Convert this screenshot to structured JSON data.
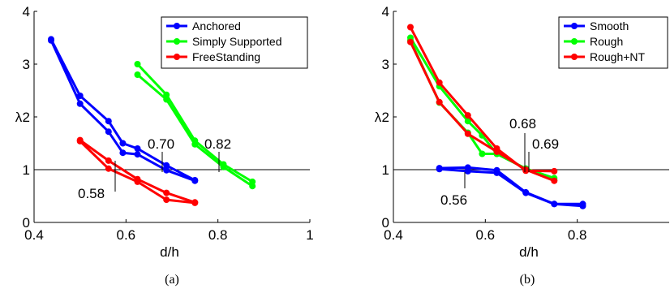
{
  "chart_data": [
    {
      "type": "line",
      "caption": "(a)",
      "xlabel": "d/h",
      "ylabel": "λ",
      "xlim": [
        0.4,
        1
      ],
      "ylim": [
        0,
        4
      ],
      "xticks": [
        "0.4",
        "0.6",
        "0.8",
        "1"
      ],
      "yticks": [
        "0",
        "1",
        "2",
        "3",
        "4"
      ],
      "reference_line_y": 1,
      "legend_position": "top-right",
      "series": [
        {
          "name": "Anchored",
          "color": "#0000ff",
          "lines": [
            [
              [
                0.437,
                3.47
              ],
              [
                0.5,
                2.4
              ],
              [
                0.562,
                1.92
              ],
              [
                0.593,
                1.5
              ],
              [
                0.625,
                1.4
              ],
              [
                0.688,
                1.08
              ],
              [
                0.75,
                0.8
              ]
            ],
            [
              [
                0.437,
                3.45
              ],
              [
                0.5,
                2.25
              ],
              [
                0.562,
                1.72
              ],
              [
                0.593,
                1.32
              ],
              [
                0.625,
                1.29
              ],
              [
                0.688,
                0.99
              ],
              [
                0.75,
                0.79
              ]
            ]
          ]
        },
        {
          "name": "Simply Supported",
          "color": "#00ff00",
          "lines": [
            [
              [
                0.625,
                3.0
              ],
              [
                0.688,
                2.42
              ],
              [
                0.75,
                1.55
              ],
              [
                0.812,
                1.1
              ],
              [
                0.875,
                0.77
              ]
            ],
            [
              [
                0.625,
                2.8
              ],
              [
                0.688,
                2.33
              ],
              [
                0.75,
                1.48
              ],
              [
                0.812,
                1.05
              ],
              [
                0.875,
                0.69
              ]
            ]
          ]
        },
        {
          "name": "FreeStanding",
          "color": "#ff0000",
          "lines": [
            [
              [
                0.5,
                1.56
              ],
              [
                0.562,
                1.17
              ],
              [
                0.625,
                0.82
              ],
              [
                0.688,
                0.56
              ],
              [
                0.75,
                0.38
              ]
            ],
            [
              [
                0.5,
                1.54
              ],
              [
                0.562,
                1.02
              ],
              [
                0.625,
                0.77
              ],
              [
                0.688,
                0.43
              ],
              [
                0.75,
                0.37
              ]
            ]
          ]
        }
      ],
      "annotations": [
        {
          "text": "0.70",
          "x_point": 0.7
        },
        {
          "text": "0.82",
          "x_point": 0.82
        },
        {
          "text": "0.58",
          "x_point": 0.58
        }
      ]
    },
    {
      "type": "line",
      "caption": "(b)",
      "xlabel": "d/h",
      "ylabel": "λ",
      "xlim": [
        0.4,
        1
      ],
      "ylim": [
        0,
        4
      ],
      "xticks": [
        "0.4",
        "0.6",
        "0.8"
      ],
      "yticks": [
        "0",
        "1",
        "2",
        "3",
        "4"
      ],
      "reference_line_y": 1,
      "legend_position": "top-right",
      "series": [
        {
          "name": "Smooth",
          "color": "#0000ff",
          "lines": [
            [
              [
                0.5,
                1.03
              ],
              [
                0.562,
                1.04
              ],
              [
                0.625,
                0.99
              ],
              [
                0.688,
                0.57
              ],
              [
                0.75,
                0.35
              ],
              [
                0.812,
                0.35
              ]
            ],
            [
              [
                0.5,
                1.01
              ],
              [
                0.562,
                0.97
              ],
              [
                0.625,
                0.94
              ],
              [
                0.688,
                0.56
              ],
              [
                0.75,
                0.35
              ],
              [
                0.812,
                0.31
              ]
            ]
          ]
        },
        {
          "name": "Rough",
          "color": "#00ff00",
          "lines": [
            [
              [
                0.437,
                3.5
              ],
              [
                0.5,
                2.58
              ],
              [
                0.562,
                1.92
              ],
              [
                0.593,
                1.65
              ],
              [
                0.625,
                1.3
              ],
              [
                0.688,
                1.02
              ],
              [
                0.75,
                0.84
              ]
            ],
            [
              [
                0.437,
                3.45
              ],
              [
                0.5,
                2.27
              ],
              [
                0.562,
                1.7
              ],
              [
                0.593,
                1.3
              ],
              [
                0.625,
                1.3
              ],
              [
                0.688,
                1.02
              ],
              [
                0.75,
                0.8
              ]
            ]
          ]
        },
        {
          "name": "Rough+NT",
          "color": "#ff0000",
          "lines": [
            [
              [
                0.437,
                3.7
              ],
              [
                0.5,
                2.65
              ],
              [
                0.562,
                2.03
              ],
              [
                0.625,
                1.4
              ],
              [
                0.688,
                0.98
              ],
              [
                0.75,
                0.97
              ]
            ],
            [
              [
                0.437,
                3.42
              ],
              [
                0.5,
                2.28
              ],
              [
                0.562,
                1.68
              ],
              [
                0.625,
                1.34
              ],
              [
                0.688,
                1.0
              ],
              [
                0.75,
                0.79
              ]
            ]
          ]
        }
      ],
      "annotations": [
        {
          "text": "0.68",
          "x_point": 0.68
        },
        {
          "text": "0.69",
          "x_point": 0.69
        },
        {
          "text": "0.56",
          "x_point": 0.56
        }
      ]
    }
  ]
}
